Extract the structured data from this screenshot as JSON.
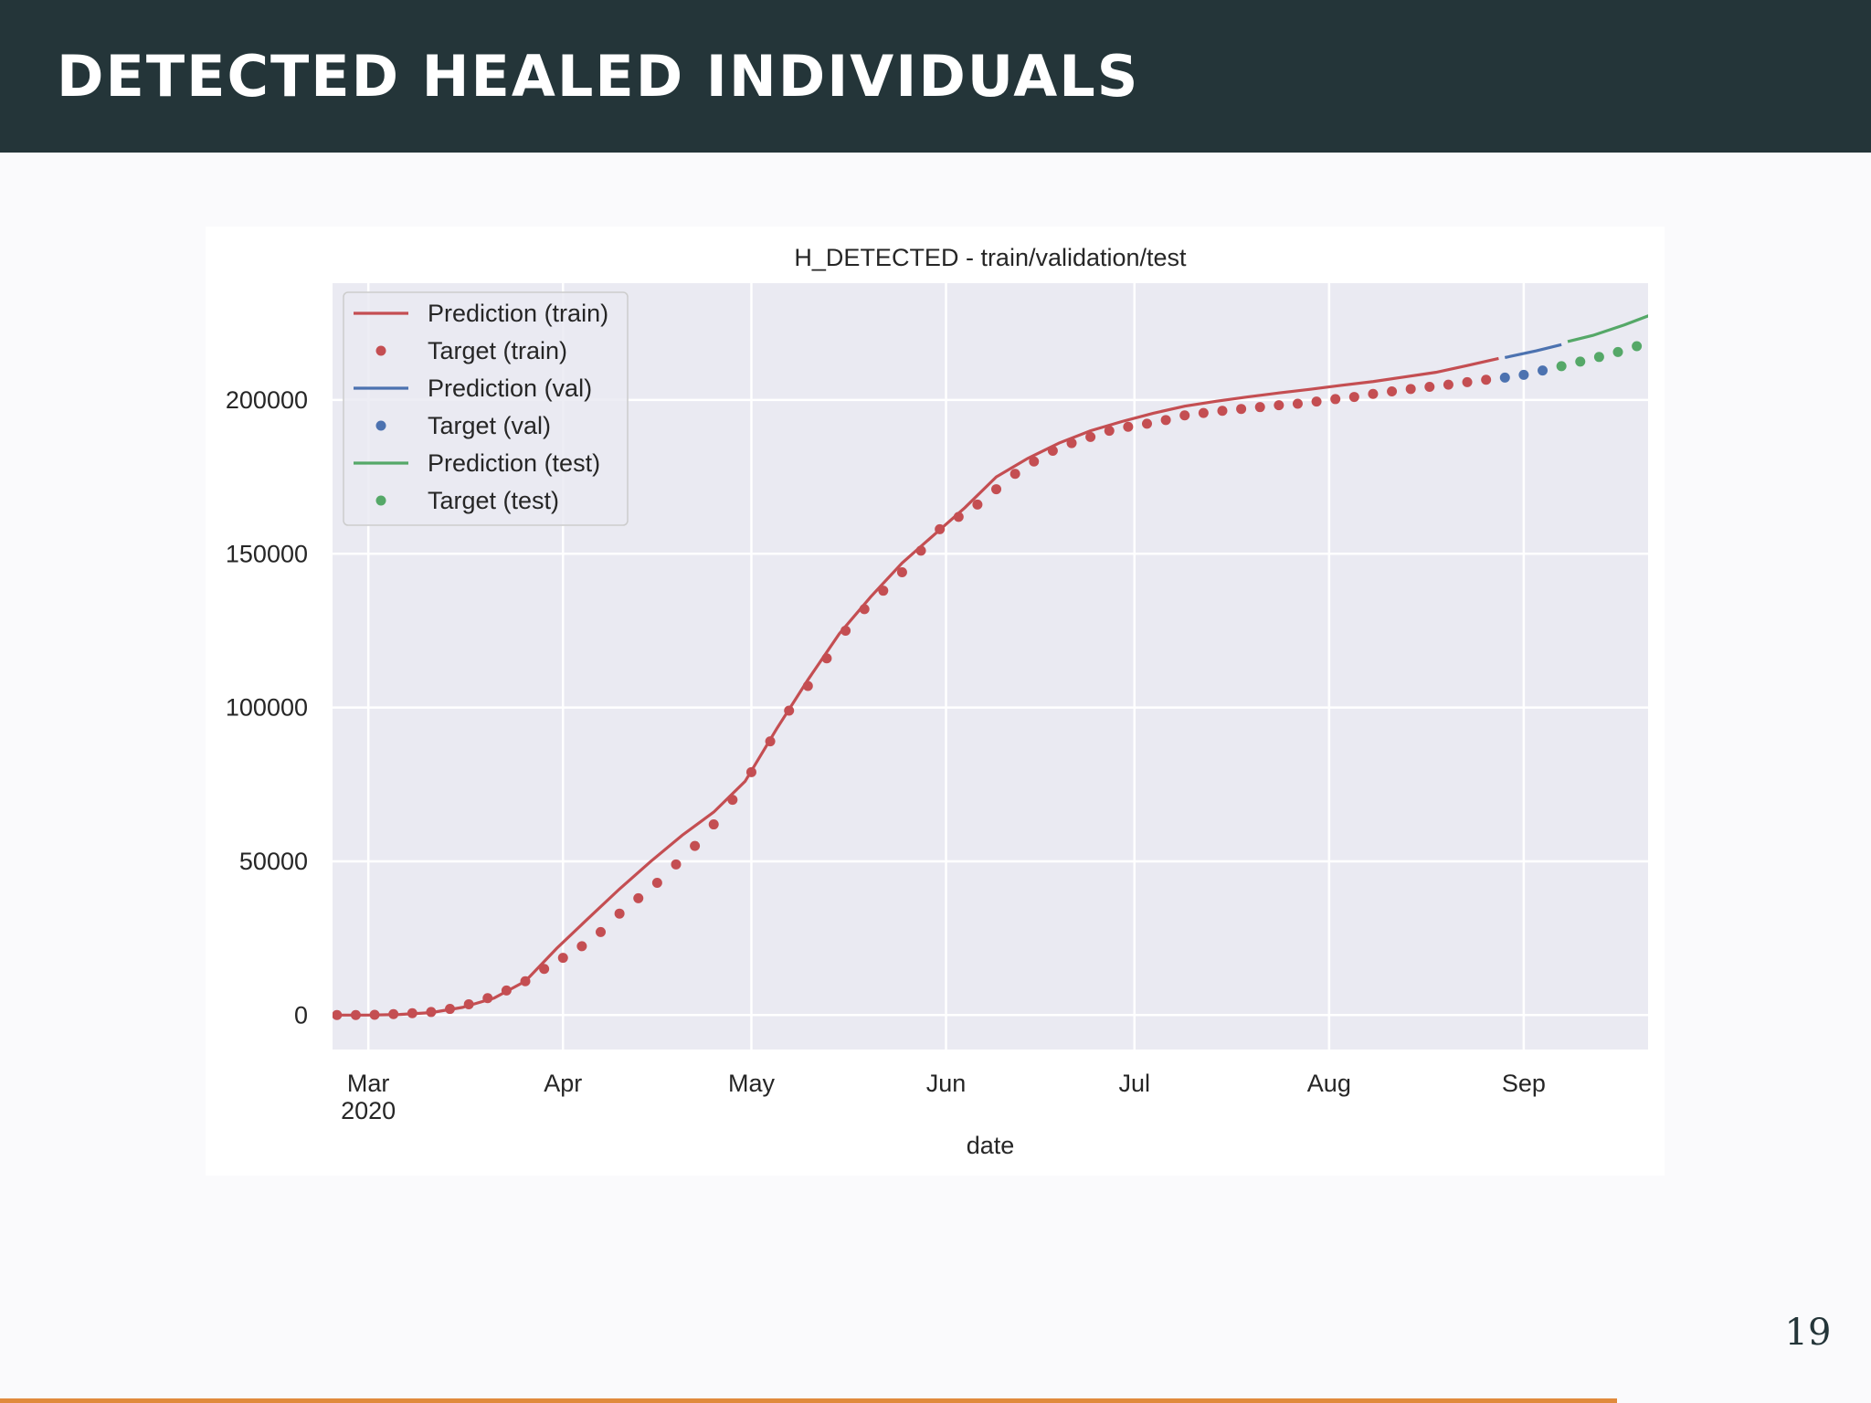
{
  "header": {
    "title": "DETECTED HEALED INDIVIDUALS"
  },
  "page_number": "19",
  "chart_data": {
    "type": "line",
    "title": "H_DETECTED - train/validation/test",
    "xlabel": "date",
    "x_year_label": "2020",
    "xlim": [
      -5.7,
      203.8
    ],
    "xticks": [
      {
        "value": 0,
        "label": "Mar"
      },
      {
        "value": 31,
        "label": "Apr"
      },
      {
        "value": 61,
        "label": "May"
      },
      {
        "value": 92,
        "label": "Jun"
      },
      {
        "value": 122,
        "label": "Jul"
      },
      {
        "value": 153,
        "label": "Aug"
      },
      {
        "value": 184,
        "label": "Sep"
      }
    ],
    "ylim": [
      -11200,
      238000
    ],
    "yticks": [
      0,
      50000,
      100000,
      150000,
      200000
    ],
    "grid": true,
    "legend": "upper left",
    "series": [
      {
        "name": "Prediction (train)",
        "style": "line",
        "color": "#c44e52",
        "x": [
          -5,
          0,
          5,
          10,
          15,
          20,
          25,
          30,
          35,
          40,
          45,
          50,
          55,
          60,
          65,
          70,
          75,
          80,
          85,
          90,
          95,
          100,
          105,
          110,
          115,
          120,
          125,
          130,
          135,
          140,
          145,
          150,
          155,
          160,
          165,
          170,
          175,
          180
        ],
        "values": [
          0,
          0,
          200,
          800,
          2500,
          5500,
          11000,
          21700,
          31400,
          41000,
          50000,
          58500,
          66000,
          76000,
          93000,
          109000,
          124000,
          136000,
          147000,
          156000,
          165000,
          175000,
          181000,
          186000,
          190000,
          193000,
          195700,
          198000,
          199600,
          201000,
          202300,
          203500,
          204800,
          206000,
          207500,
          209000,
          211200,
          213500
        ]
      },
      {
        "name": "Target (train)",
        "style": "scatter",
        "color": "#c44e52",
        "x": [
          -5,
          -2,
          1,
          4,
          7,
          10,
          13,
          16,
          19,
          22,
          25,
          28,
          31,
          34,
          37,
          40,
          43,
          46,
          49,
          52,
          55,
          58,
          61,
          64,
          67,
          70,
          73,
          76,
          79,
          82,
          85,
          88,
          91,
          94,
          97,
          100,
          103,
          106,
          109,
          112,
          115,
          118,
          121,
          124,
          127,
          130,
          133,
          136,
          139,
          142,
          145,
          148,
          151,
          154,
          157,
          160,
          163,
          166,
          169,
          172,
          175,
          178
        ],
        "values": [
          0,
          0,
          100,
          300,
          600,
          1000,
          2000,
          3500,
          5500,
          8000,
          11000,
          15000,
          18600,
          22400,
          27000,
          33000,
          38000,
          43000,
          49000,
          55000,
          62000,
          70000,
          79000,
          89000,
          99000,
          107000,
          116000,
          125000,
          132000,
          138000,
          144000,
          151000,
          158000,
          162000,
          166000,
          171000,
          176000,
          180000,
          183500,
          186000,
          188000,
          190000,
          191300,
          192300,
          193500,
          195000,
          195800,
          196500,
          197100,
          197700,
          198300,
          198800,
          199500,
          200300,
          201000,
          202000,
          202800,
          203600,
          204300,
          205000,
          205800,
          206600
        ]
      },
      {
        "name": "Prediction (val)",
        "style": "line",
        "color": "#4c72b0",
        "x": [
          181,
          186,
          190
        ],
        "values": [
          213800,
          216000,
          218000
        ]
      },
      {
        "name": "Target (val)",
        "style": "scatter",
        "color": "#4c72b0",
        "x": [
          181,
          184,
          187
        ],
        "values": [
          207300,
          208200,
          209600
        ]
      },
      {
        "name": "Prediction (test)",
        "style": "line",
        "color": "#55a868",
        "x": [
          191,
          195,
          200,
          204
        ],
        "values": [
          219000,
          221000,
          224400,
          227500
        ]
      },
      {
        "name": "Target (test)",
        "style": "scatter",
        "color": "#55a868",
        "x": [
          190,
          193,
          196,
          199,
          202
        ],
        "values": [
          211000,
          212500,
          214000,
          215600,
          217500
        ]
      }
    ]
  }
}
